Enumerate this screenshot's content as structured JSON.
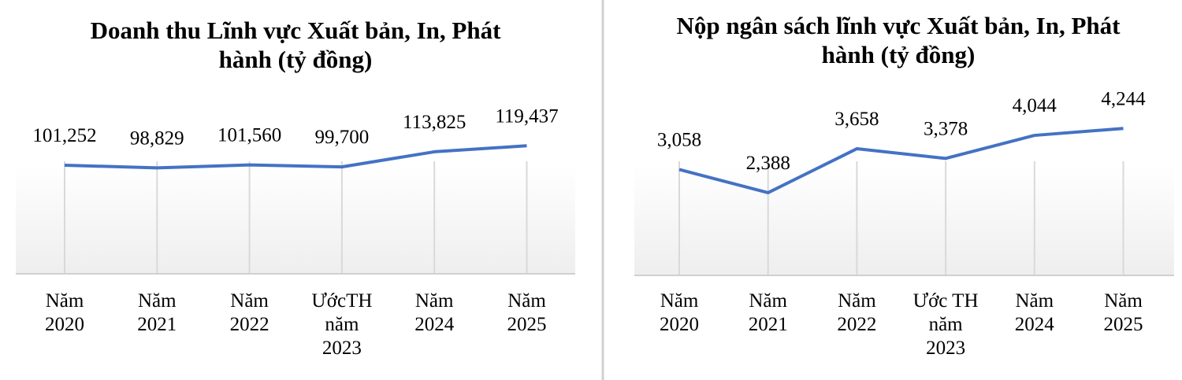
{
  "chart_data": [
    {
      "type": "line",
      "title": "Doanh thu Lĩnh vực Xuất bản, In, Phát hành (tỷ đồng)",
      "categories": [
        "Năm 2020",
        "Năm 2021",
        "Năm 2022",
        "ƯớcTH năm 2023",
        "Năm 2024",
        "Năm 2025"
      ],
      "values": [
        101252,
        98829,
        101560,
        99700,
        113825,
        119437
      ],
      "value_labels": [
        "101,252",
        "98,829",
        "101,560",
        "99,700",
        "113,825",
        "119,437"
      ],
      "color": "#4472c4",
      "ylim": [
        0,
        160000
      ],
      "grid": true
    },
    {
      "type": "line",
      "title": "Nộp ngân sách lĩnh vực Xuất bản, In, Phát hành (tỷ đồng)",
      "categories": [
        "Năm 2020",
        "Năm 2021",
        "Năm 2022",
        "Ước TH năm 2023",
        "Năm 2024",
        "Năm 2025"
      ],
      "values": [
        3058,
        2388,
        3658,
        3378,
        4044,
        4244
      ],
      "value_labels": [
        "3,058",
        "2,388",
        "3,658",
        "3,378",
        "4,044",
        "4,244"
      ],
      "color": "#4472c4",
      "ylim": [
        0,
        5000
      ],
      "grid": true
    }
  ]
}
